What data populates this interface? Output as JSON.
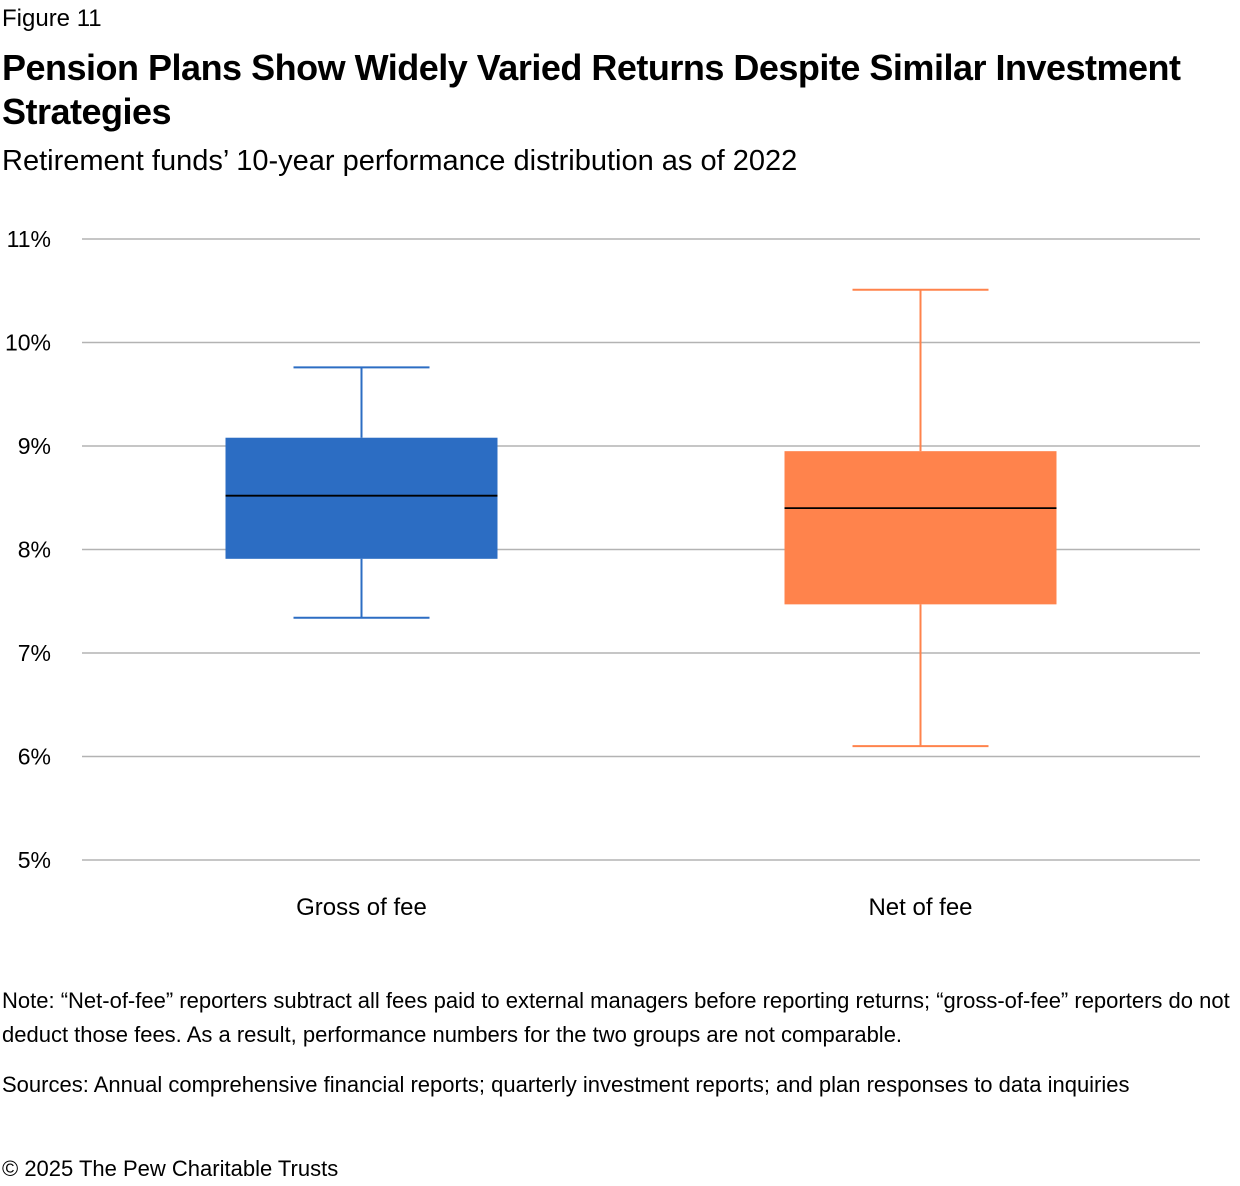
{
  "figure_label": "Figure 11",
  "title": "Pension Plans Show Widely Varied Returns Despite Similar Investment Strategies",
  "subtitle": "Retirement funds’ 10-year performance distribution as of 2022",
  "note": "Note: “Net-of-fee” reporters subtract all fees paid to external managers before reporting returns; “gross-of-fee” reporters do not deduct those fees. As a result, performance numbers for the two groups are not comparable.",
  "sources": "Sources: Annual comprehensive financial reports; quarterly investment reports; and plan responses to data inquiries",
  "copyright": "© 2025 The Pew Charitable Trusts",
  "chart_data": {
    "type": "box",
    "title": "",
    "xlabel": "",
    "ylabel": "",
    "ylim": [
      5,
      11
    ],
    "yticks": [
      5,
      6,
      7,
      8,
      9,
      10,
      11
    ],
    "ytick_labels": [
      "5%",
      "6%",
      "7%",
      "8%",
      "9%",
      "10%",
      "11%"
    ],
    "grid": true,
    "legend": "none",
    "categories": [
      "Gross of fee",
      "Net of fee"
    ],
    "series": [
      {
        "category": "Gross of fee",
        "color": "#2c6dc3",
        "whisker_color": "#2c6dc3",
        "min": 7.34,
        "q1": 7.91,
        "median": 8.52,
        "q3": 9.08,
        "max": 9.76
      },
      {
        "category": "Net of fee",
        "color": "#ff834c",
        "whisker_color": "#ff834c",
        "min": 6.1,
        "q1": 7.47,
        "median": 8.4,
        "q3": 8.95,
        "max": 10.51
      }
    ]
  }
}
